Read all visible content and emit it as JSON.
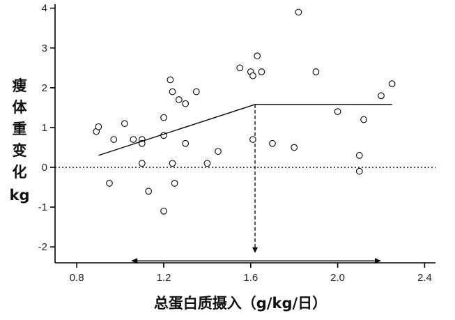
{
  "chart_data": {
    "type": "scatter",
    "title": "",
    "xlabel": "总蛋白质摄入（g/kg/日）",
    "ylabel_chars": [
      "瘦",
      "体",
      "重",
      "变",
      "化",
      "kg"
    ],
    "xlim": [
      0.7,
      2.45
    ],
    "ylim": [
      -2.4,
      4.1
    ],
    "xticks": [
      0.8,
      1.2,
      1.6,
      2.0,
      2.4
    ],
    "xtick_labels": [
      "0.8",
      "1.2",
      "1.6",
      "2.0",
      "2.4"
    ],
    "yticks": [
      -2,
      -1,
      0,
      1,
      2,
      3,
      4
    ],
    "ytick_labels": [
      "-2",
      "-1",
      "0",
      "1",
      "2",
      "3",
      "4"
    ],
    "grid": false,
    "points": [
      {
        "x": 0.89,
        "y": 0.9
      },
      {
        "x": 0.9,
        "y": 1.02
      },
      {
        "x": 0.95,
        "y": -0.4
      },
      {
        "x": 0.97,
        "y": 0.7
      },
      {
        "x": 1.02,
        "y": 1.1
      },
      {
        "x": 1.06,
        "y": 0.7
      },
      {
        "x": 1.1,
        "y": 0.7
      },
      {
        "x": 1.1,
        "y": 0.6
      },
      {
        "x": 1.1,
        "y": 0.1
      },
      {
        "x": 1.13,
        "y": -0.6
      },
      {
        "x": 1.2,
        "y": 1.25
      },
      {
        "x": 1.2,
        "y": 0.8
      },
      {
        "x": 1.2,
        "y": -1.1
      },
      {
        "x": 1.23,
        "y": 2.2
      },
      {
        "x": 1.24,
        "y": 1.9
      },
      {
        "x": 1.24,
        "y": 0.1
      },
      {
        "x": 1.25,
        "y": -0.4
      },
      {
        "x": 1.27,
        "y": 1.7
      },
      {
        "x": 1.3,
        "y": 1.6
      },
      {
        "x": 1.3,
        "y": 0.6
      },
      {
        "x": 1.35,
        "y": 1.9
      },
      {
        "x": 1.4,
        "y": 0.1
      },
      {
        "x": 1.45,
        "y": 0.4
      },
      {
        "x": 1.55,
        "y": 2.5
      },
      {
        "x": 1.6,
        "y": 2.4
      },
      {
        "x": 1.61,
        "y": 2.3
      },
      {
        "x": 1.61,
        "y": 0.7
      },
      {
        "x": 1.63,
        "y": 2.8
      },
      {
        "x": 1.65,
        "y": 2.4
      },
      {
        "x": 1.7,
        "y": 0.6
      },
      {
        "x": 1.8,
        "y": 0.5
      },
      {
        "x": 1.82,
        "y": 3.9
      },
      {
        "x": 1.9,
        "y": 2.4
      },
      {
        "x": 2.0,
        "y": 1.4
      },
      {
        "x": 2.1,
        "y": 0.3
      },
      {
        "x": 2.1,
        "y": -0.1
      },
      {
        "x": 2.12,
        "y": 1.2
      },
      {
        "x": 2.2,
        "y": 1.8
      },
      {
        "x": 2.25,
        "y": 2.1
      }
    ],
    "fit_line": [
      {
        "x": 0.9,
        "y": 0.3
      },
      {
        "x": 1.62,
        "y": 1.58
      },
      {
        "x": 2.25,
        "y": 1.58
      }
    ],
    "zero_line": {
      "y": 0,
      "style": "dotted"
    },
    "breakpoint_marker": {
      "x": 1.62,
      "y_top": 1.58,
      "y_bottom": -2.15,
      "style": "dashed",
      "arrow": "down"
    },
    "range_arrow": {
      "x_start": 1.05,
      "x_end": 2.2,
      "y": -2.35,
      "arrows": "both"
    }
  }
}
